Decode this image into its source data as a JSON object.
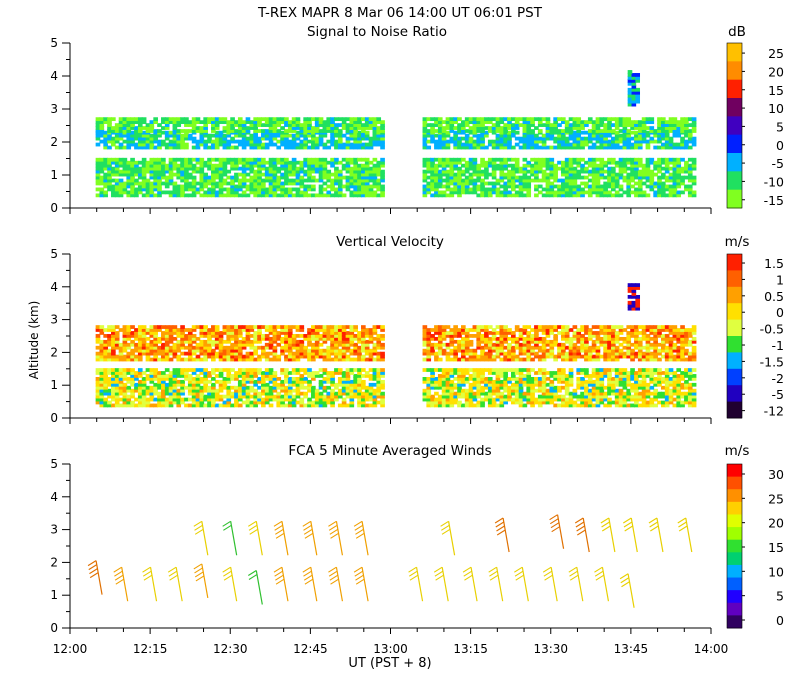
{
  "header": {
    "title": "T-REX   MAPR   8 Mar 06   14:00 UT   06:01   PST"
  },
  "shared_axes": {
    "ylabel": "Altitude (km)",
    "xlabel": "UT  (PST + 8)",
    "x_ticks": [
      "12:00",
      "12:15",
      "12:30",
      "12:45",
      "13:00",
      "13:15",
      "13:30",
      "13:45",
      "14:00"
    ],
    "x_range_hours": [
      12.0,
      14.0
    ],
    "y_ticks": [
      "0",
      "1",
      "2",
      "3",
      "4",
      "5"
    ],
    "y_range_km": [
      0,
      5
    ]
  },
  "chart_data": [
    {
      "type": "heatmap",
      "title": "Signal to Noise Ratio",
      "units": "dB",
      "colorbar": {
        "labels": [
          "25",
          "20",
          "15",
          "10",
          "5",
          "0",
          "-5",
          "-10",
          "-15"
        ],
        "colors": [
          "#ffc000",
          "#ff8c00",
          "#ff2000",
          "#700060",
          "#4000c0",
          "#0020ff",
          "#00b0ff",
          "#20e060",
          "#80ff20"
        ]
      },
      "data_gap_ut": [
        12.97,
        13.1
      ],
      "features": [
        {
          "name": "lower layer",
          "x_range": [
            12.08,
            13.95
          ],
          "alt_range_km": [
            0.35,
            1.5
          ],
          "snr_db": -10
        },
        {
          "name": "enhanced band",
          "x_range": [
            12.08,
            13.95
          ],
          "alt_range_km": [
            1.8,
            2.3
          ],
          "snr_db": -5
        },
        {
          "name": "upper layer",
          "x_range": [
            12.08,
            13.95
          ],
          "alt_range_km": [
            2.3,
            2.7
          ],
          "snr_db": -12
        },
        {
          "name": "isolated echo",
          "x_range": [
            13.74,
            13.77
          ],
          "alt_range_km": [
            3.1,
            4.1
          ],
          "snr_db": 0
        }
      ]
    },
    {
      "type": "heatmap",
      "title": "Vertical Velocity",
      "units": "m/s",
      "colorbar": {
        "labels": [
          "1.5",
          "1",
          "0.5",
          "0",
          "-0.5",
          "-1",
          "-1.5",
          "-2",
          "-5",
          "-12"
        ],
        "colors": [
          "#ff2000",
          "#ff6000",
          "#ffa000",
          "#ffe000",
          "#e0ff40",
          "#30e030",
          "#00b0ff",
          "#0040ff",
          "#2000c0",
          "#200030"
        ]
      },
      "data_gap_ut": [
        12.97,
        13.1
      ],
      "features": [
        {
          "name": "lower layer",
          "x_range": [
            12.08,
            13.95
          ],
          "alt_range_km": [
            0.35,
            1.5
          ],
          "velocity_ms": 0.5
        },
        {
          "name": "upper layer",
          "x_range": [
            12.08,
            13.95
          ],
          "alt_range_km": [
            1.75,
            2.75
          ],
          "velocity_ms": 1.0
        },
        {
          "name": "isolated echo",
          "x_range": [
            13.74,
            13.77
          ],
          "alt_range_km": [
            3.3,
            4.1
          ],
          "velocity_ms": 1.5
        }
      ]
    },
    {
      "type": "scatter",
      "title": "FCA 5 Minute Averaged Winds",
      "units": "m/s",
      "colorbar": {
        "labels": [
          "30",
          "25",
          "20",
          "15",
          "10",
          "5",
          "0"
        ],
        "colors": [
          "#ff0000",
          "#ff5000",
          "#ff9000",
          "#ffd000",
          "#e0ff00",
          "#a0ff00",
          "#30e030",
          "#00d070",
          "#00b0ff",
          "#0060ff",
          "#2000ff",
          "#6000c0",
          "#300060"
        ]
      },
      "barbs": [
        {
          "t": 12.1,
          "alt": 1.2,
          "speed": 24
        },
        {
          "t": 12.18,
          "alt": 1.0,
          "speed": 22
        },
        {
          "t": 12.27,
          "alt": 1.0,
          "speed": 20
        },
        {
          "t": 12.35,
          "alt": 1.0,
          "speed": 20
        },
        {
          "t": 12.43,
          "alt": 1.1,
          "speed": 23
        },
        {
          "t": 12.52,
          "alt": 1.0,
          "speed": 20
        },
        {
          "t": 12.6,
          "alt": 0.9,
          "speed": 14
        },
        {
          "t": 12.68,
          "alt": 1.0,
          "speed": 21
        },
        {
          "t": 12.77,
          "alt": 1.0,
          "speed": 23
        },
        {
          "t": 12.85,
          "alt": 1.0,
          "speed": 22
        },
        {
          "t": 12.93,
          "alt": 1.0,
          "speed": 23
        },
        {
          "t": 13.1,
          "alt": 1.0,
          "speed": 20
        },
        {
          "t": 13.18,
          "alt": 1.0,
          "speed": 20
        },
        {
          "t": 13.27,
          "alt": 1.0,
          "speed": 20
        },
        {
          "t": 13.35,
          "alt": 1.0,
          "speed": 20
        },
        {
          "t": 13.43,
          "alt": 1.0,
          "speed": 20
        },
        {
          "t": 13.52,
          "alt": 1.0,
          "speed": 19
        },
        {
          "t": 13.6,
          "alt": 1.0,
          "speed": 19
        },
        {
          "t": 13.68,
          "alt": 1.0,
          "speed": 19
        },
        {
          "t": 13.76,
          "alt": 0.8,
          "speed": 18
        },
        {
          "t": 12.43,
          "alt": 2.4,
          "speed": 19
        },
        {
          "t": 12.52,
          "alt": 2.4,
          "speed": 14
        },
        {
          "t": 12.6,
          "alt": 2.4,
          "speed": 20
        },
        {
          "t": 12.68,
          "alt": 2.4,
          "speed": 21
        },
        {
          "t": 12.77,
          "alt": 2.4,
          "speed": 22
        },
        {
          "t": 12.85,
          "alt": 2.4,
          "speed": 21
        },
        {
          "t": 12.93,
          "alt": 2.4,
          "speed": 21
        },
        {
          "t": 13.2,
          "alt": 2.4,
          "speed": 20
        },
        {
          "t": 13.37,
          "alt": 2.5,
          "speed": 24
        },
        {
          "t": 13.54,
          "alt": 2.6,
          "speed": 25
        },
        {
          "t": 13.62,
          "alt": 2.5,
          "speed": 25
        },
        {
          "t": 13.7,
          "alt": 2.5,
          "speed": 20
        },
        {
          "t": 13.77,
          "alt": 2.5,
          "speed": 20
        },
        {
          "t": 13.85,
          "alt": 2.5,
          "speed": 19
        },
        {
          "t": 13.94,
          "alt": 2.5,
          "speed": 19
        }
      ]
    }
  ]
}
